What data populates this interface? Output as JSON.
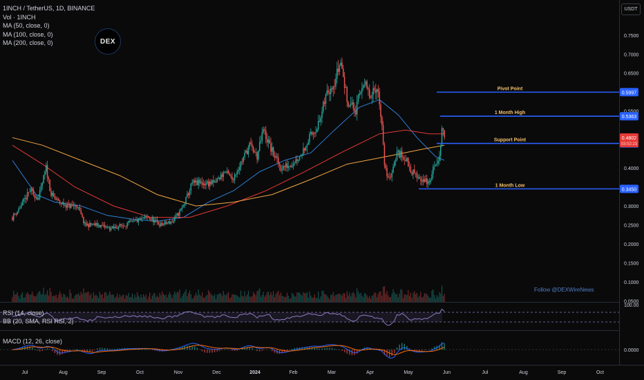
{
  "legend": {
    "symbol": "1INCH / TetherUS, 1D, BINANCE",
    "volume": "Vol · 1INCH",
    "ma50": "MA (50, close, 0)",
    "ma100": "MA (100, close, 0)",
    "ma200": "MA (200, close, 0)"
  },
  "currency_button": "USDT",
  "logo_text": "DEX",
  "watermark": "Follow @DEXWireNews",
  "rsi_label": "RSI (14, close)",
  "bb_label": "BB (20, SMA, RSI RSI, 2)",
  "macd_label": "MACD (12, 26, close)",
  "colors": {
    "background": "#0a0a0b",
    "up": "#26a69a",
    "down": "#ef5350",
    "level_line": "#2962ff",
    "ma50": "#2f7fd6",
    "ma100": "#e53935",
    "ma200": "#f5a742",
    "level_text": "#f5c16c",
    "rsi": "#8e7cc3",
    "macd": "#2962ff",
    "signal": "#ff6d00"
  },
  "chart_data": {
    "type": "candlestick",
    "x_axis_labels": [
      "Jul",
      "Aug",
      "Sep",
      "Oct",
      "Nov",
      "Dec",
      "2024",
      "Feb",
      "Mar",
      "Apr",
      "May",
      "Jun",
      "Jul",
      "Aug",
      "Sep",
      "Oct"
    ],
    "y_axis_ticks": [
      "0.7500",
      "0.7000",
      "0.6500",
      "0.5500",
      "0.4000",
      "0.3500",
      "0.3000",
      "0.2500",
      "0.2000",
      "0.1500",
      "0.1000",
      "0.0500"
    ],
    "ylim": [
      0.05,
      0.79
    ],
    "levels": [
      {
        "label": "Pivot Point",
        "price": 0.5997,
        "tag": "0.5997"
      },
      {
        "label": "1 Month High",
        "price": 0.5363,
        "tag": "0.5363"
      },
      {
        "label": "Support Point",
        "price": 0.4647,
        "tag": "0.4647"
      },
      {
        "label": "1 Month Low",
        "price": 0.345,
        "tag": "0.3450"
      }
    ],
    "last_price": {
      "value": 0.4802,
      "tag": "0.4802",
      "countdown": "03:02:23"
    },
    "price_path": [
      {
        "date": "Jun 21",
        "price": 0.27
      },
      {
        "date": "Jun 28",
        "price": 0.3
      },
      {
        "date": "Jul 05",
        "price": 0.34
      },
      {
        "date": "Jul 12",
        "price": 0.32
      },
      {
        "date": "Jul 18",
        "price": 0.4
      },
      {
        "date": "Jul 22",
        "price": 0.33
      },
      {
        "date": "Jul 28",
        "price": 0.31
      },
      {
        "date": "Aug 05",
        "price": 0.3
      },
      {
        "date": "Aug 12",
        "price": 0.3
      },
      {
        "date": "Aug 18",
        "price": 0.25
      },
      {
        "date": "Aug 28",
        "price": 0.25
      },
      {
        "date": "Sep 08",
        "price": 0.24
      },
      {
        "date": "Sep 18",
        "price": 0.25
      },
      {
        "date": "Sep 28",
        "price": 0.26
      },
      {
        "date": "Oct 08",
        "price": 0.27
      },
      {
        "date": "Oct 18",
        "price": 0.25
      },
      {
        "date": "Oct 28",
        "price": 0.26
      },
      {
        "date": "Nov 05",
        "price": 0.3
      },
      {
        "date": "Nov 12",
        "price": 0.36
      },
      {
        "date": "Nov 20",
        "price": 0.36
      },
      {
        "date": "Nov 30",
        "price": 0.36
      },
      {
        "date": "Dec 08",
        "price": 0.39
      },
      {
        "date": "Dec 14",
        "price": 0.37
      },
      {
        "date": "Dec 22",
        "price": 0.42
      },
      {
        "date": "Dec 28",
        "price": 0.46
      },
      {
        "date": "Jan 03",
        "price": 0.43
      },
      {
        "date": "Jan 08",
        "price": 0.5
      },
      {
        "date": "Jan 14",
        "price": 0.45
      },
      {
        "date": "Jan 22",
        "price": 0.4
      },
      {
        "date": "Jan 30",
        "price": 0.41
      },
      {
        "date": "Feb 06",
        "price": 0.43
      },
      {
        "date": "Feb 14",
        "price": 0.48
      },
      {
        "date": "Feb 22",
        "price": 0.52
      },
      {
        "date": "Feb 28",
        "price": 0.6
      },
      {
        "date": "Mar 05",
        "price": 0.63
      },
      {
        "date": "Mar 10",
        "price": 0.68
      },
      {
        "date": "Mar 15",
        "price": 0.58
      },
      {
        "date": "Mar 22",
        "price": 0.55
      },
      {
        "date": "Mar 28",
        "price": 0.63
      },
      {
        "date": "Apr 03",
        "price": 0.58
      },
      {
        "date": "Apr 08",
        "price": 0.62
      },
      {
        "date": "Apr 12",
        "price": 0.52
      },
      {
        "date": "Apr 14",
        "price": 0.4
      },
      {
        "date": "Apr 18",
        "price": 0.37
      },
      {
        "date": "Apr 24",
        "price": 0.44
      },
      {
        "date": "Apr 30",
        "price": 0.43
      },
      {
        "date": "May 06",
        "price": 0.39
      },
      {
        "date": "May 14",
        "price": 0.37
      },
      {
        "date": "May 20",
        "price": 0.36
      },
      {
        "date": "May 24",
        "price": 0.41
      },
      {
        "date": "May 28",
        "price": 0.43
      },
      {
        "date": "May 30",
        "price": 0.5
      },
      {
        "date": "Jun 01",
        "price": 0.48
      }
    ],
    "ma50": [
      {
        "date": "Jun 21",
        "price": 0.42
      },
      {
        "date": "Jul 10",
        "price": 0.33
      },
      {
        "date": "Jul 25",
        "price": 0.31
      },
      {
        "date": "Aug 15",
        "price": 0.3
      },
      {
        "date": "Sep 05",
        "price": 0.275
      },
      {
        "date": "Sep 25",
        "price": 0.265
      },
      {
        "date": "Oct 15",
        "price": 0.26
      },
      {
        "date": "Nov 05",
        "price": 0.27
      },
      {
        "date": "Nov 25",
        "price": 0.31
      },
      {
        "date": "Dec 15",
        "price": 0.34
      },
      {
        "date": "Jan 05",
        "price": 0.39
      },
      {
        "date": "Jan 25",
        "price": 0.42
      },
      {
        "date": "Feb 15",
        "price": 0.44
      },
      {
        "date": "Mar 05",
        "price": 0.5
      },
      {
        "date": "Mar 25",
        "price": 0.56
      },
      {
        "date": "Apr 10",
        "price": 0.58
      },
      {
        "date": "Apr 25",
        "price": 0.54
      },
      {
        "date": "May 10",
        "price": 0.48
      },
      {
        "date": "May 25",
        "price": 0.43
      },
      {
        "date": "Jun 01",
        "price": 0.42
      }
    ],
    "ma100": [
      {
        "date": "Jun 21",
        "price": 0.46
      },
      {
        "date": "Jul 15",
        "price": 0.41
      },
      {
        "date": "Aug 10",
        "price": 0.35
      },
      {
        "date": "Sep 10",
        "price": 0.3
      },
      {
        "date": "Oct 10",
        "price": 0.27
      },
      {
        "date": "Nov 10",
        "price": 0.27
      },
      {
        "date": "Dec 10",
        "price": 0.3
      },
      {
        "date": "Jan 10",
        "price": 0.34
      },
      {
        "date": "Feb 10",
        "price": 0.39
      },
      {
        "date": "Mar 10",
        "price": 0.44
      },
      {
        "date": "Apr 10",
        "price": 0.49
      },
      {
        "date": "May 01",
        "price": 0.5
      },
      {
        "date": "May 20",
        "price": 0.49
      },
      {
        "date": "Jun 01",
        "price": 0.49
      }
    ],
    "ma200": [
      {
        "date": "Jun 21",
        "price": 0.48
      },
      {
        "date": "Jul 15",
        "price": 0.46
      },
      {
        "date": "Aug 15",
        "price": 0.42
      },
      {
        "date": "Sep 15",
        "price": 0.38
      },
      {
        "date": "Oct 15",
        "price": 0.33
      },
      {
        "date": "Nov 15",
        "price": 0.3
      },
      {
        "date": "Dec 15",
        "price": 0.31
      },
      {
        "date": "Jan 15",
        "price": 0.33
      },
      {
        "date": "Feb 15",
        "price": 0.37
      },
      {
        "date": "Mar 15",
        "price": 0.41
      },
      {
        "date": "Apr 15",
        "price": 0.43
      },
      {
        "date": "May 15",
        "price": 0.45
      },
      {
        "date": "Jun 01",
        "price": 0.46
      }
    ],
    "macd_axis_tick": "0.0000",
    "rsi_axis_tick": "100.00"
  }
}
